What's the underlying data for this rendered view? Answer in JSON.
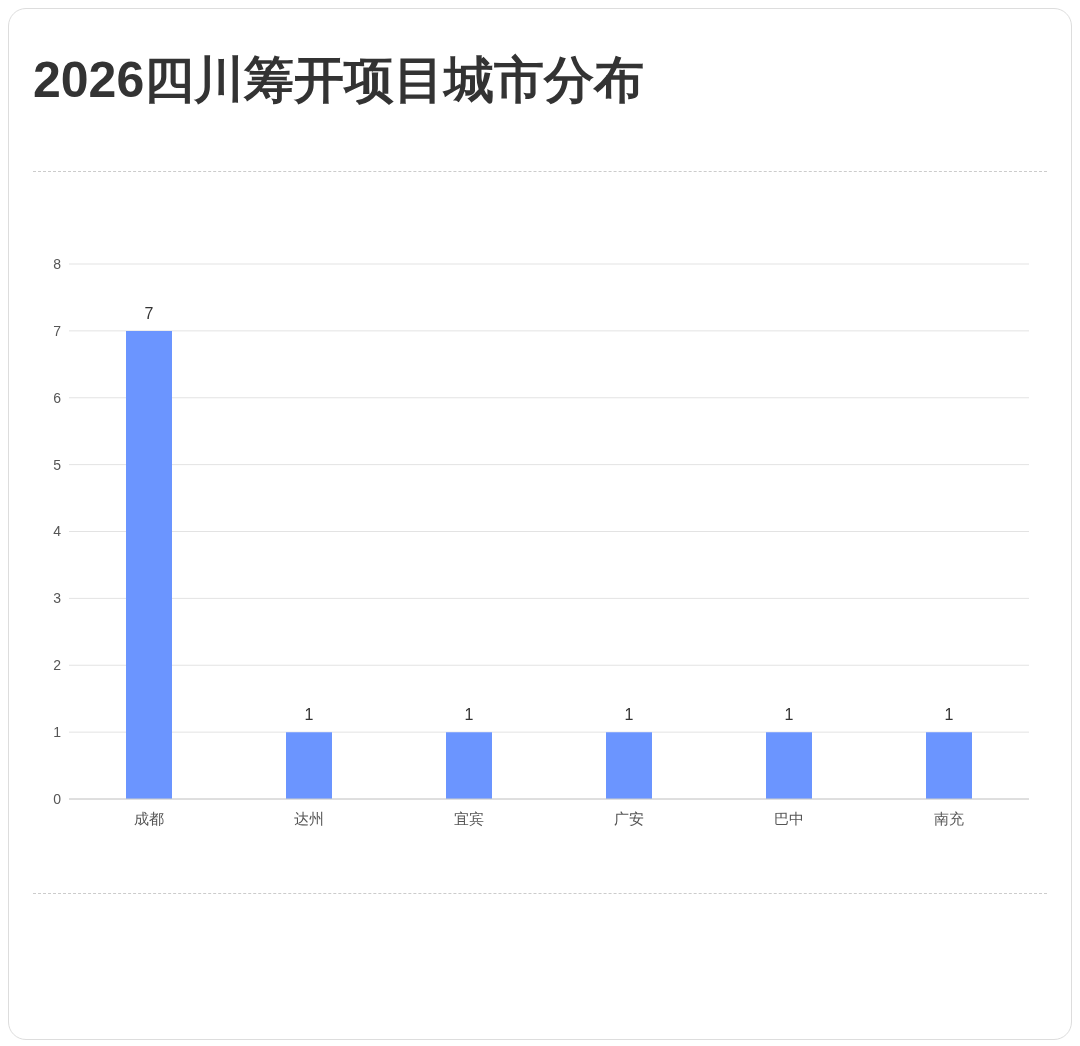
{
  "chart_data": {
    "type": "bar",
    "title": "2026四川筹开项目城市分布",
    "categories": [
      "成都",
      "达州",
      "宜宾",
      "广安",
      "巴中",
      "南充"
    ],
    "values": [
      7,
      1,
      1,
      1,
      1,
      1
    ],
    "color": "#6b95ff",
    "ylim": [
      0,
      8
    ],
    "yticks": [
      0,
      1,
      2,
      3,
      4,
      5,
      6,
      7,
      8
    ],
    "grid": "y",
    "data_labels": true
  }
}
